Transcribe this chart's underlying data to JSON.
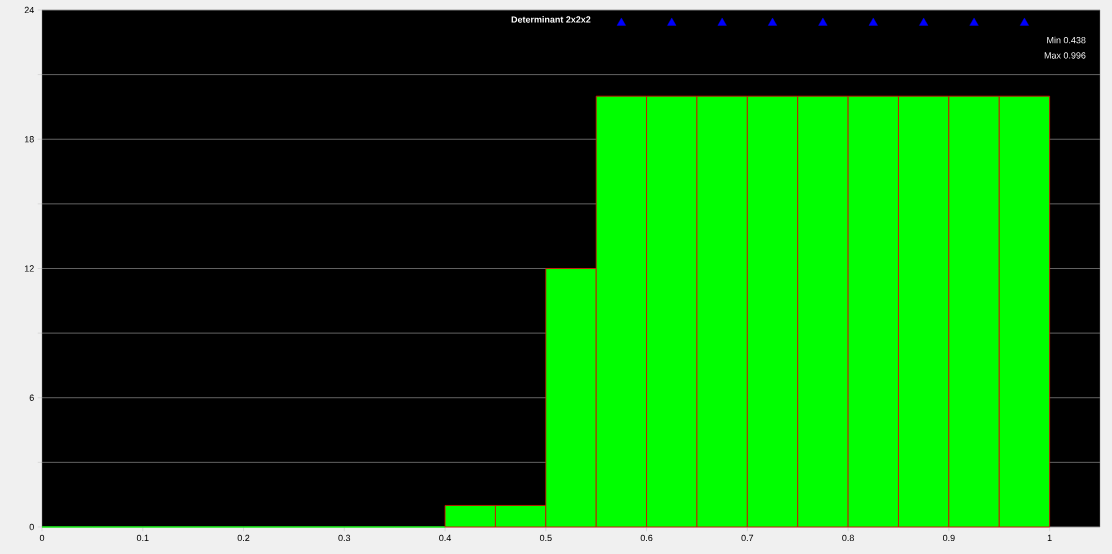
{
  "chart_data": {
    "type": "histogram",
    "title": "Determinant 2x2x2",
    "annotations": [
      "Min 0.438",
      "Max 0.996"
    ],
    "bins": [
      0,
      0.05,
      0.1,
      0.15,
      0.2,
      0.25,
      0.3,
      0.35,
      0.4,
      0.45,
      0.5,
      0.55,
      0.6,
      0.65,
      0.7,
      0.75,
      0.8,
      0.85,
      0.9,
      0.95,
      1
    ],
    "series": [
      {
        "color": "#00ff00",
        "values": [
          0,
          0,
          0,
          0,
          0,
          0,
          0,
          0,
          1,
          1,
          12,
          20,
          20,
          20,
          20,
          20,
          20,
          20,
          20,
          20
        ]
      },
      {
        "type": "scatter",
        "color": "#0000ff",
        "marker": "triangle",
        "x": [
          0.575,
          0.625,
          0.675,
          0.725,
          0.775,
          0.825,
          0.875,
          0.925,
          0.975
        ],
        "values": [
          23.4,
          23.4,
          23.4,
          23.4,
          23.4,
          23.4,
          23.4,
          23.4,
          23.4
        ]
      }
    ],
    "xlim": [
      0,
      1.05
    ],
    "ylim": [
      0,
      24
    ],
    "xticks": [
      0,
      0.1,
      0.2,
      0.3,
      0.4,
      0.5,
      0.6,
      0.7,
      0.8,
      0.9,
      1
    ],
    "yticks": [
      0,
      {
        "value": 3,
        "label": null
      },
      6,
      {
        "value": 9,
        "label": null
      },
      12,
      {
        "value": 15,
        "label": null
      },
      18,
      {
        "value": 21,
        "label": null
      },
      24
    ],
    "grid": "y"
  }
}
